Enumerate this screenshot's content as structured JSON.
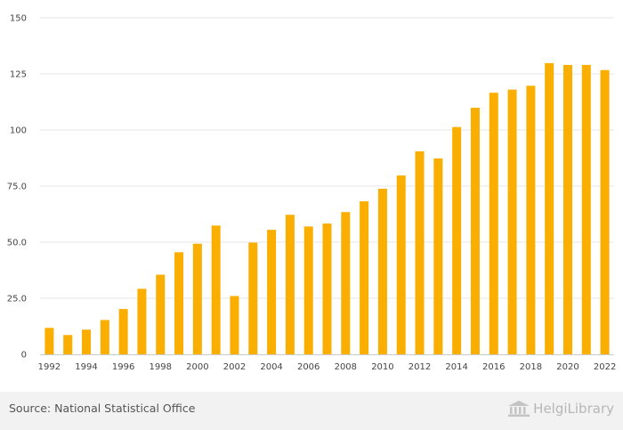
{
  "chart_data": {
    "type": "bar",
    "categories": [
      "1992",
      "1993",
      "1994",
      "1995",
      "1996",
      "1997",
      "1998",
      "1999",
      "2000",
      "2001",
      "2002",
      "2003",
      "2004",
      "2005",
      "2006",
      "2007",
      "2008",
      "2009",
      "2010",
      "2011",
      "2012",
      "2013",
      "2014",
      "2015",
      "2016",
      "2017",
      "2018",
      "2019",
      "2020",
      "2021",
      "2022"
    ],
    "values": [
      11.8,
      8.6,
      11.0,
      15.3,
      20.2,
      29.2,
      35.5,
      45.5,
      49.3,
      57.4,
      26.0,
      49.8,
      55.5,
      62.2,
      57.0,
      58.3,
      63.4,
      68.2,
      73.8,
      79.7,
      90.5,
      87.3,
      101.3,
      109.9,
      116.6,
      118.0,
      119.7,
      129.8,
      129.0,
      129.0,
      126.7
    ],
    "x_tick_labels": [
      "1992",
      "1994",
      "1996",
      "1998",
      "2000",
      "2002",
      "2004",
      "2006",
      "2008",
      "2010",
      "2012",
      "2014",
      "2016",
      "2018",
      "2020",
      "2022"
    ],
    "y_ticks": [
      0,
      25,
      50,
      75,
      100,
      125,
      150
    ],
    "y_tick_labels": [
      "0",
      "25.0",
      "50.0",
      "75.0",
      "100",
      "125",
      "150"
    ],
    "ylim": [
      0,
      150
    ],
    "grid": true,
    "bar_color": "#f9ae00",
    "grid_color": "#e6e6e6",
    "title": "",
    "xlabel": "",
    "ylabel": ""
  },
  "footer": {
    "source": "Source: National Statistical Office",
    "brand_name": "HelgiLibrary"
  }
}
